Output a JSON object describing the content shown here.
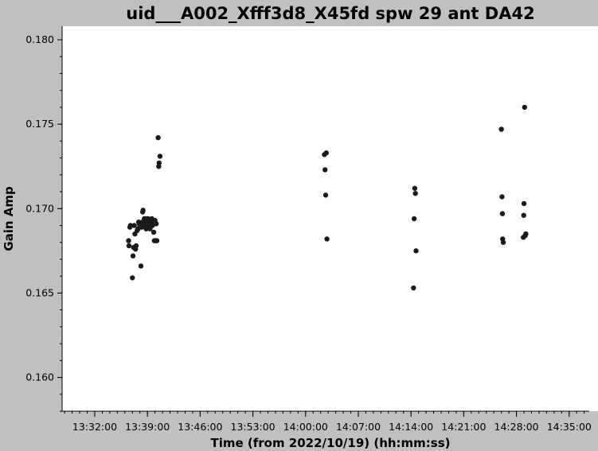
{
  "chart_data": {
    "type": "scatter",
    "title": "uid___A002_Xfff3d8_X45fd spw 29 ant DA42",
    "xlabel": "Time (from 2022/10/19) (hh:mm:ss)",
    "ylabel": "Gain Amp",
    "x_unit": "hh:mm:ss",
    "xlim": [
      "13:27:40",
      "14:37:40"
    ],
    "ylim": [
      0.158,
      0.1808
    ],
    "x_ticks": [
      "13:32:00",
      "13:39:00",
      "13:46:00",
      "13:53:00",
      "14:00:00",
      "14:07:00",
      "14:14:00",
      "14:21:00",
      "14:28:00",
      "14:35:00"
    ],
    "y_ticks": [
      "0.160",
      "0.165",
      "0.170",
      "0.175",
      "0.180"
    ],
    "grid": false,
    "marker_color": "#1a1a1a",
    "points": [
      {
        "x": "13:36:30",
        "y": 0.1681
      },
      {
        "x": "13:36:33",
        "y": 0.1678
      },
      {
        "x": "13:36:40",
        "y": 0.1689
      },
      {
        "x": "13:36:45",
        "y": 0.169
      },
      {
        "x": "13:37:00",
        "y": 0.1659
      },
      {
        "x": "13:37:05",
        "y": 0.1672
      },
      {
        "x": "13:37:10",
        "y": 0.1677
      },
      {
        "x": "13:37:15",
        "y": 0.169
      },
      {
        "x": "13:37:20",
        "y": 0.1685
      },
      {
        "x": "13:37:25",
        "y": 0.1676
      },
      {
        "x": "13:37:30",
        "y": 0.1678
      },
      {
        "x": "13:37:38",
        "y": 0.1687
      },
      {
        "x": "13:37:45",
        "y": 0.1688
      },
      {
        "x": "13:37:50",
        "y": 0.1692
      },
      {
        "x": "13:37:55",
        "y": 0.1691
      },
      {
        "x": "13:38:00",
        "y": 0.169
      },
      {
        "x": "13:38:08",
        "y": 0.1666
      },
      {
        "x": "13:38:10",
        "y": 0.1691
      },
      {
        "x": "13:38:15",
        "y": 0.1689
      },
      {
        "x": "13:38:20",
        "y": 0.1692
      },
      {
        "x": "13:38:22",
        "y": 0.1698
      },
      {
        "x": "13:38:25",
        "y": 0.1699
      },
      {
        "x": "13:38:30",
        "y": 0.169
      },
      {
        "x": "13:38:35",
        "y": 0.1694
      },
      {
        "x": "13:38:40",
        "y": 0.1691
      },
      {
        "x": "13:38:45",
        "y": 0.1693
      },
      {
        "x": "13:38:50",
        "y": 0.1688
      },
      {
        "x": "13:38:55",
        "y": 0.1694
      },
      {
        "x": "13:39:00",
        "y": 0.169
      },
      {
        "x": "13:39:05",
        "y": 0.1694
      },
      {
        "x": "13:39:10",
        "y": 0.1689
      },
      {
        "x": "13:39:15",
        "y": 0.1692
      },
      {
        "x": "13:39:20",
        "y": 0.1688
      },
      {
        "x": "13:39:25",
        "y": 0.1693
      },
      {
        "x": "13:39:30",
        "y": 0.1691
      },
      {
        "x": "13:39:35",
        "y": 0.1694
      },
      {
        "x": "13:39:40",
        "y": 0.169
      },
      {
        "x": "13:39:45",
        "y": 0.1692
      },
      {
        "x": "13:39:50",
        "y": 0.1686
      },
      {
        "x": "13:39:55",
        "y": 0.1681
      },
      {
        "x": "13:40:00",
        "y": 0.1693
      },
      {
        "x": "13:40:05",
        "y": 0.1681
      },
      {
        "x": "13:40:10",
        "y": 0.1691
      },
      {
        "x": "13:40:15",
        "y": 0.1681
      },
      {
        "x": "13:40:25",
        "y": 0.1742
      },
      {
        "x": "13:40:30",
        "y": 0.1725
      },
      {
        "x": "13:40:33",
        "y": 0.1727
      },
      {
        "x": "13:40:40",
        "y": 0.1731
      },
      {
        "x": "14:02:30",
        "y": 0.1732
      },
      {
        "x": "14:02:35",
        "y": 0.1723
      },
      {
        "x": "14:02:40",
        "y": 0.1708
      },
      {
        "x": "14:02:45",
        "y": 0.1733
      },
      {
        "x": "14:02:50",
        "y": 0.1682
      },
      {
        "x": "14:14:20",
        "y": 0.1653
      },
      {
        "x": "14:14:25",
        "y": 0.1694
      },
      {
        "x": "14:14:30",
        "y": 0.1712
      },
      {
        "x": "14:14:35",
        "y": 0.1709
      },
      {
        "x": "14:14:40",
        "y": 0.1675
      },
      {
        "x": "14:26:00",
        "y": 0.1747
      },
      {
        "x": "14:26:05",
        "y": 0.1707
      },
      {
        "x": "14:26:08",
        "y": 0.1697
      },
      {
        "x": "14:26:10",
        "y": 0.1682
      },
      {
        "x": "14:26:15",
        "y": 0.168
      },
      {
        "x": "14:28:55",
        "y": 0.1683
      },
      {
        "x": "14:28:58",
        "y": 0.1696
      },
      {
        "x": "14:29:00",
        "y": 0.1703
      },
      {
        "x": "14:29:05",
        "y": 0.176
      },
      {
        "x": "14:29:10",
        "y": 0.1684
      },
      {
        "x": "14:29:15",
        "y": 0.1685
      }
    ]
  }
}
